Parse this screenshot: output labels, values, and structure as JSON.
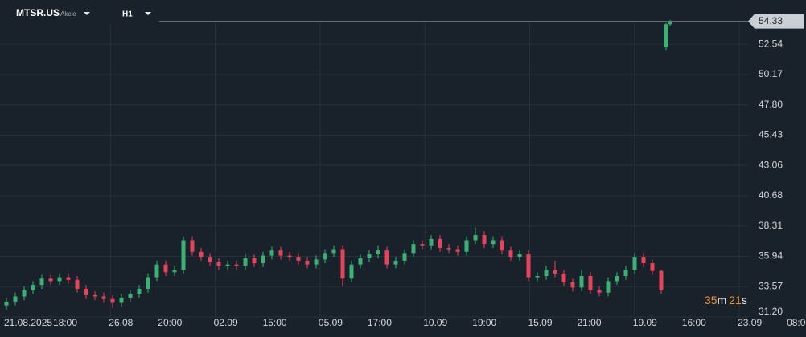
{
  "header": {
    "symbol": "MTSR.US",
    "asset_type": "Akcie",
    "timeframe": "H1"
  },
  "countdown": [
    "35",
    "m",
    "21",
    "s"
  ],
  "chart_data": {
    "type": "candlestick",
    "x_labels": [
      [
        "21.08.2025",
        "18:00"
      ],
      [
        "26.08",
        "20:00"
      ],
      [
        "02.09",
        "15:00"
      ],
      [
        "05.09",
        "17:00"
      ],
      [
        "10.09",
        "19:00"
      ],
      [
        "15.09",
        "21:00"
      ],
      [
        "19.09",
        "16:00"
      ],
      [
        "23.09",
        "08:00"
      ]
    ],
    "open": [
      32.1,
      32.4,
      32.8,
      33.3,
      33.7,
      34.2,
      34.0,
      34.3,
      34.1,
      33.4,
      32.9,
      32.8,
      32.6,
      32.3,
      32.7,
      33.0,
      33.4,
      34.3,
      35.3,
      34.7,
      34.9,
      37.2,
      36.3,
      35.9,
      35.5,
      35.2,
      35.3,
      35.2,
      35.8,
      35.4,
      36.0,
      36.4,
      36.0,
      35.9,
      35.6,
      35.3,
      35.7,
      36.2,
      36.5,
      34.2,
      35.3,
      35.8,
      36.1,
      36.4,
      35.3,
      35.6,
      36.2,
      36.9,
      36.8,
      37.3,
      36.6,
      36.5,
      36.3,
      37.2,
      37.6,
      36.9,
      37.2,
      36.4,
      35.9,
      36.1,
      34.3,
      34.4,
      34.9,
      34.6,
      33.9,
      33.5,
      34.4,
      33.3,
      33.1,
      34.0,
      34.4,
      34.9,
      35.9,
      35.4,
      34.8,
      52.3,
      54.1
    ],
    "high": [
      32.7,
      33.1,
      33.6,
      34.0,
      34.5,
      34.5,
      34.6,
      34.6,
      34.4,
      33.7,
      33.2,
      33.1,
      32.9,
      33.0,
      33.3,
      33.7,
      34.6,
      35.6,
      35.6,
      35.2,
      37.5,
      37.5,
      36.6,
      36.2,
      35.8,
      35.6,
      35.6,
      36.1,
      36.1,
      36.3,
      36.7,
      36.7,
      36.3,
      36.2,
      35.9,
      36.0,
      36.5,
      36.8,
      36.8,
      35.6,
      36.1,
      36.4,
      36.8,
      36.7,
      35.9,
      36.5,
      37.2,
      37.2,
      37.6,
      37.6,
      36.9,
      36.8,
      37.5,
      38.2,
      37.9,
      37.5,
      37.5,
      36.7,
      36.4,
      36.4,
      34.7,
      35.2,
      35.6,
      34.9,
      34.2,
      34.9,
      34.7,
      33.6,
      34.3,
      34.7,
      35.2,
      36.2,
      36.2,
      35.7,
      34.9,
      54.2,
      54.45
    ],
    "low": [
      31.8,
      32.1,
      32.5,
      33.0,
      33.4,
      33.7,
      33.7,
      33.8,
      33.1,
      32.6,
      32.5,
      32.3,
      31.9,
      32.0,
      32.4,
      32.7,
      33.1,
      34.0,
      34.4,
      34.4,
      34.6,
      36.0,
      35.6,
      35.2,
      34.9,
      34.9,
      34.9,
      34.9,
      35.1,
      35.1,
      35.7,
      35.7,
      35.6,
      35.3,
      35.0,
      35.0,
      35.4,
      35.9,
      33.6,
      33.9,
      35.0,
      35.5,
      35.8,
      35.0,
      35.0,
      35.3,
      35.9,
      36.5,
      36.5,
      36.3,
      36.2,
      36.0,
      36.0,
      36.9,
      36.6,
      36.6,
      36.1,
      35.6,
      35.6,
      34.0,
      34.0,
      34.1,
      34.3,
      33.6,
      33.2,
      33.2,
      33.0,
      32.8,
      32.8,
      33.7,
      34.1,
      34.6,
      35.1,
      34.5,
      33.0,
      52.1,
      53.95
    ],
    "close": [
      32.4,
      32.8,
      33.3,
      33.7,
      34.2,
      34.0,
      34.3,
      34.1,
      33.4,
      32.9,
      32.8,
      32.6,
      32.3,
      32.7,
      33.0,
      33.4,
      34.3,
      35.3,
      34.7,
      34.9,
      37.2,
      36.3,
      35.9,
      35.5,
      35.2,
      35.3,
      35.2,
      35.8,
      35.4,
      36.0,
      36.4,
      36.0,
      35.9,
      35.6,
      35.3,
      35.7,
      36.2,
      36.5,
      34.2,
      35.3,
      35.8,
      36.1,
      36.4,
      35.3,
      35.6,
      36.2,
      36.9,
      36.8,
      37.3,
      36.6,
      36.5,
      36.3,
      37.2,
      37.6,
      36.9,
      37.2,
      36.4,
      35.9,
      36.1,
      34.3,
      34.4,
      34.9,
      34.6,
      33.9,
      33.5,
      34.4,
      33.3,
      33.1,
      34.0,
      34.4,
      34.9,
      35.9,
      35.4,
      34.8,
      33.3,
      54.1,
      54.33
    ],
    "up_color": "#3bb273",
    "down_color": "#e5445b",
    "last_price": 54.33,
    "ylim": [
      31.2,
      56.0
    ],
    "yticks": [
      52.54,
      50.17,
      {
        "value": 47.8,
        "label": "47.80"
      },
      45.43,
      43.06,
      40.68,
      38.31,
      35.94,
      33.57,
      {
        "value": 31.2,
        "label": "31.20"
      }
    ],
    "grid": true
  }
}
